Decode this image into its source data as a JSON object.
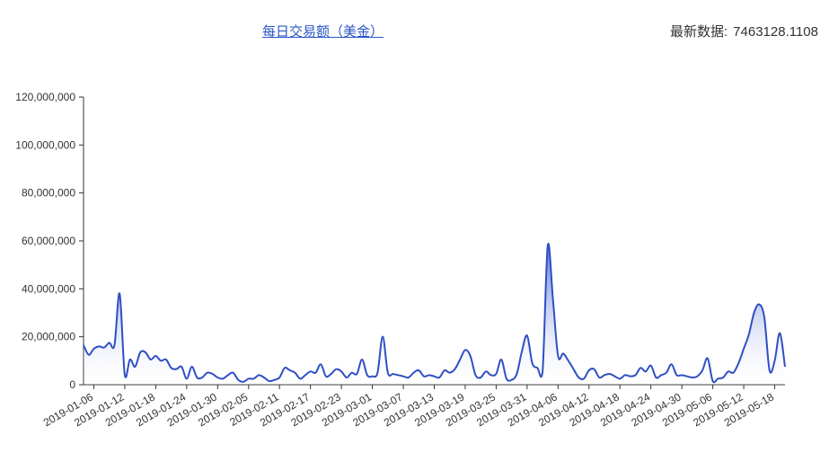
{
  "header": {
    "title": "每日交易额（美金）",
    "latest_label": "最新数据:",
    "latest_value": "7463128.1108"
  },
  "colors": {
    "line": "#2f4fc4",
    "fill_top": "#3a57cc",
    "fill_bottom": "#ffffff",
    "axis": "#333333"
  },
  "chart_data": {
    "type": "area",
    "title": "",
    "xlabel": "",
    "ylabel": "",
    "ylim": [
      0,
      120000000
    ],
    "y_ticks": [
      0,
      20000000,
      40000000,
      60000000,
      80000000,
      100000000,
      120000000
    ],
    "y_tick_labels": [
      "0",
      "20,000,000",
      "40,000,000",
      "60,000,000",
      "80,000,000",
      "100,000,000",
      "120,000,000"
    ],
    "x_tick_labels": [
      "2019-01-06",
      "2019-01-12",
      "2019-01-18",
      "2019-01-24",
      "2019-01-30",
      "2019-02-05",
      "2019-02-11",
      "2019-02-17",
      "2019-02-23",
      "2019-03-01",
      "2019-03-07",
      "2019-03-13",
      "2019-03-19",
      "2019-03-25",
      "2019-03-31",
      "2019-04-06",
      "2019-04-12",
      "2019-04-18",
      "2019-04-24",
      "2019-04-30",
      "2019-05-06",
      "2019-05-12",
      "2019-05-18"
    ],
    "start_date": "2019-01-04",
    "grid": false,
    "series": [
      {
        "values": [
          16500000,
          12500000,
          15000000,
          16000000,
          15500000,
          17500000,
          16500000,
          38000000,
          4000000,
          10500000,
          7500000,
          13500000,
          13500000,
          10500000,
          12000000,
          10000000,
          10500000,
          7000000,
          6500000,
          7500000,
          2500000,
          7500000,
          3000000,
          3000000,
          5000000,
          4500000,
          3000000,
          2500000,
          4000000,
          5000000,
          2000000,
          1200000,
          2500000,
          2500000,
          4000000,
          3000000,
          1500000,
          2000000,
          3000000,
          7000000,
          6000000,
          5000000,
          2500000,
          4000000,
          5500000,
          5000000,
          8500000,
          3500000,
          4500000,
          6500000,
          5500000,
          3000000,
          5000000,
          4500000,
          10500000,
          4000000,
          3500000,
          5000000,
          20000000,
          5000000,
          4500000,
          4000000,
          3500000,
          3000000,
          5000000,
          6000000,
          3500000,
          4000000,
          3500000,
          3000000,
          6000000,
          5000000,
          6500000,
          10500000,
          14500000,
          12000000,
          4000000,
          3000000,
          5500000,
          4000000,
          4500000,
          10500000,
          2500000,
          2000000,
          4500000,
          14000000,
          20500000,
          9000000,
          7000000,
          5500000,
          58000000,
          36000000,
          12000000,
          13000000,
          10000000,
          6500000,
          3000000,
          2500000,
          6000000,
          6500000,
          3000000,
          4000000,
          4500000,
          3500000,
          2500000,
          4000000,
          3500000,
          4000000,
          7000000,
          5500000,
          8000000,
          3000000,
          4000000,
          5000000,
          8500000,
          4000000,
          4000000,
          3500000,
          3000000,
          3500000,
          6000000,
          11000000,
          1500000,
          2500000,
          3000000,
          5500000,
          5000000,
          9000000,
          15000000,
          21000000,
          30000000,
          33500000,
          28000000,
          6000000,
          10000000,
          21500000,
          7500000
        ]
      }
    ]
  }
}
